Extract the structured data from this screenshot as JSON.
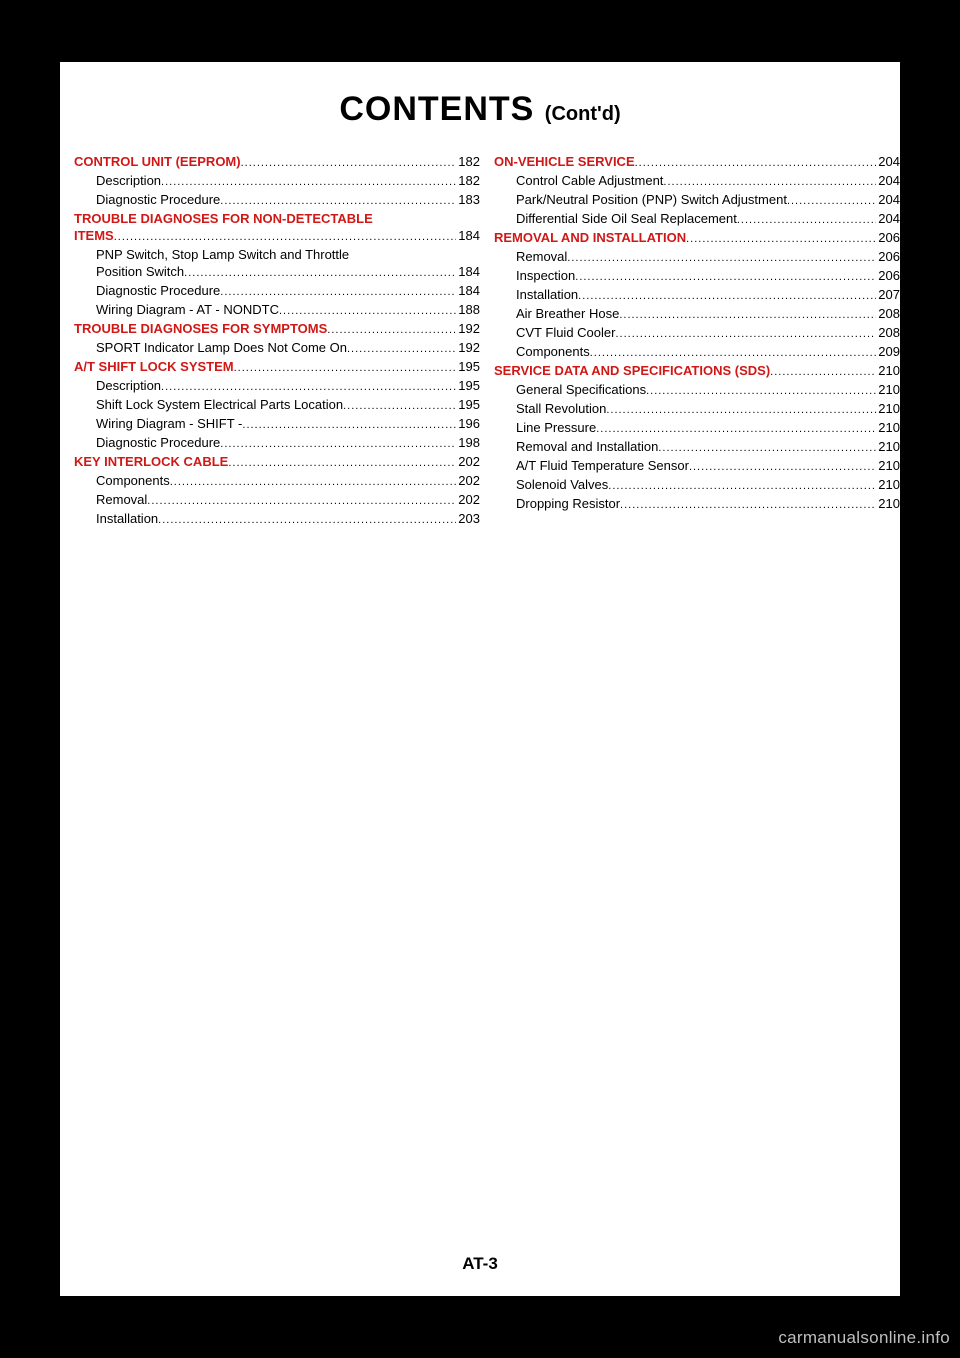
{
  "title": {
    "main": "CONTENTS",
    "sub": "(Cont'd)"
  },
  "left": [
    {
      "t": "section",
      "label": "CONTROL UNIT (EEPROM)",
      "page": "182"
    },
    {
      "t": "sub",
      "label": "Description",
      "page": "182"
    },
    {
      "t": "sub",
      "label": "Diagnostic Procedure",
      "page": "183"
    },
    {
      "t": "section",
      "label": "TROUBLE DIAGNOSES FOR NON-DETECTABLE",
      "nopg": true
    },
    {
      "t": "section-cont",
      "label": "ITEMS",
      "page": "184"
    },
    {
      "t": "sub",
      "label": "PNP Switch, Stop Lamp Switch and Throttle",
      "nopg": true
    },
    {
      "t": "sub-cont",
      "label": "Position Switch",
      "page": "184"
    },
    {
      "t": "sub",
      "label": "Diagnostic Procedure",
      "page": "184"
    },
    {
      "t": "sub",
      "label": "Wiring Diagram - AT - NONDTC",
      "page": "188"
    },
    {
      "t": "section",
      "label": "TROUBLE DIAGNOSES FOR SYMPTOMS",
      "page": "192"
    },
    {
      "t": "sub",
      "label": "SPORT Indicator Lamp Does Not Come On",
      "page": "192"
    },
    {
      "t": "section",
      "label": "A/T SHIFT LOCK SYSTEM",
      "page": "195"
    },
    {
      "t": "sub",
      "label": "Description",
      "page": "195"
    },
    {
      "t": "sub",
      "label": "Shift Lock System Electrical Parts Location",
      "page": "195"
    },
    {
      "t": "sub",
      "label": "Wiring Diagram - SHIFT -",
      "page": "196"
    },
    {
      "t": "sub",
      "label": "Diagnostic Procedure",
      "page": "198"
    },
    {
      "t": "section",
      "label": "KEY INTERLOCK CABLE",
      "page": "202"
    },
    {
      "t": "sub",
      "label": "Components",
      "page": "202"
    },
    {
      "t": "sub",
      "label": "Removal",
      "page": "202"
    },
    {
      "t": "sub",
      "label": "Installation",
      "page": "203"
    }
  ],
  "right": [
    {
      "t": "section",
      "label": "ON-VEHICLE SERVICE",
      "page": "204"
    },
    {
      "t": "sub",
      "label": "Control Cable Adjustment",
      "page": "204"
    },
    {
      "t": "sub",
      "label": "Park/Neutral Position (PNP) Switch Adjustment",
      "page": "204"
    },
    {
      "t": "sub",
      "label": "Differential Side Oil Seal Replacement",
      "page": "204"
    },
    {
      "t": "section",
      "label": "REMOVAL AND INSTALLATION",
      "page": "206"
    },
    {
      "t": "sub",
      "label": "Removal",
      "page": "206"
    },
    {
      "t": "sub",
      "label": "Inspection",
      "page": "206"
    },
    {
      "t": "sub",
      "label": "Installation",
      "page": "207"
    },
    {
      "t": "sub",
      "label": "Air Breather Hose",
      "page": "208"
    },
    {
      "t": "sub",
      "label": "CVT Fluid Cooler",
      "page": "208"
    },
    {
      "t": "sub",
      "label": "Components",
      "page": "209"
    },
    {
      "t": "section",
      "label": "SERVICE DATA AND SPECIFICATIONS (SDS)",
      "page": "210"
    },
    {
      "t": "sub",
      "label": "General Specifications",
      "page": "210"
    },
    {
      "t": "sub",
      "label": "Stall Revolution",
      "page": "210"
    },
    {
      "t": "sub",
      "label": "Line Pressure",
      "page": "210"
    },
    {
      "t": "sub",
      "label": "Removal and Installation",
      "page": "210"
    },
    {
      "t": "sub",
      "label": "A/T Fluid Temperature Sensor",
      "page": "210"
    },
    {
      "t": "sub",
      "label": "Solenoid Valves",
      "page": "210"
    },
    {
      "t": "sub",
      "label": "Dropping Resistor",
      "page": "210"
    }
  ],
  "pagenum": "AT-3",
  "watermark": "carmanualsonline.info"
}
